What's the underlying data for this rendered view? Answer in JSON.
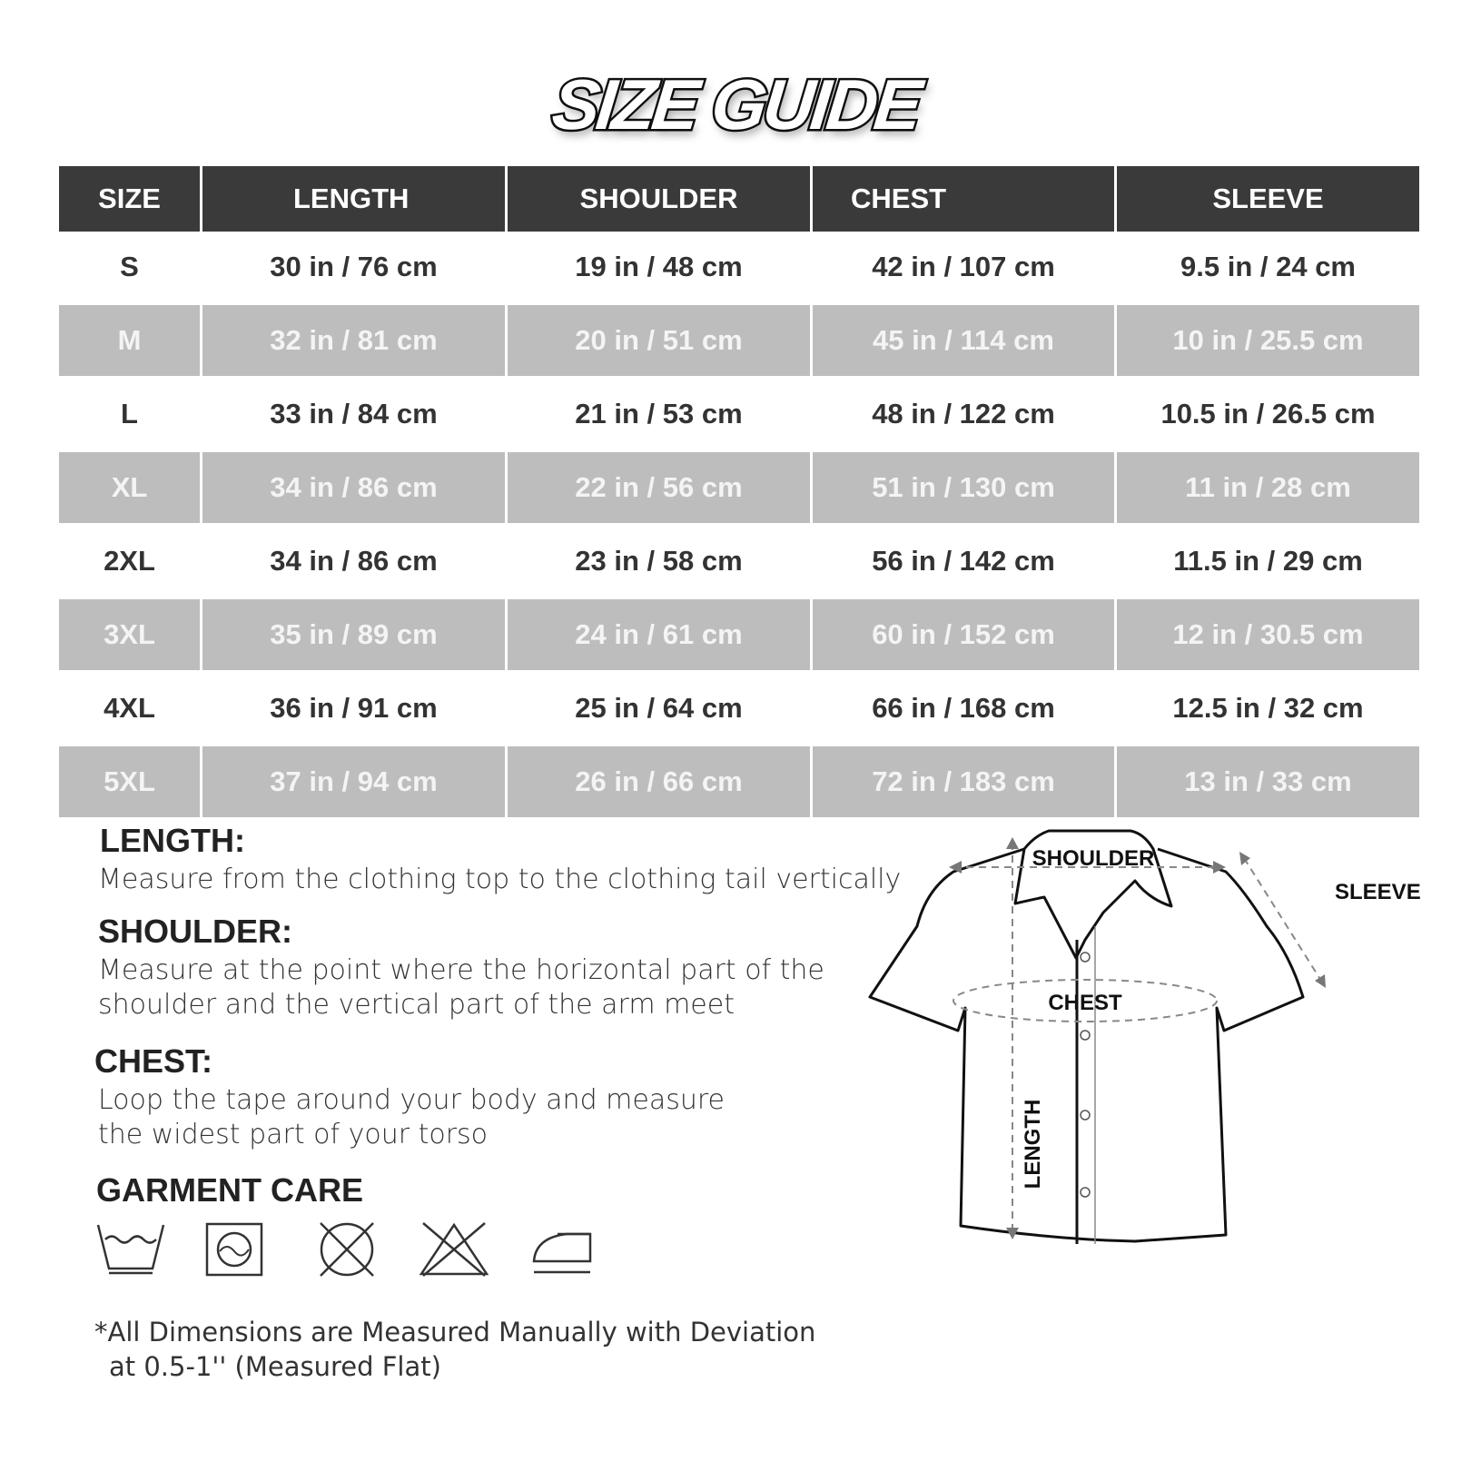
{
  "title": "SIZE GUIDE",
  "table": {
    "headers": [
      "SIZE",
      "LENGTH",
      "SHOULDER",
      "CHEST",
      "SLEEVE"
    ],
    "rows": [
      [
        "S",
        "30 in / 76 cm",
        "19 in / 48 cm",
        "42 in / 107 cm",
        "9.5 in / 24 cm"
      ],
      [
        "M",
        "32 in / 81 cm",
        "20 in / 51 cm",
        "45 in / 114 cm",
        "10 in / 25.5 cm"
      ],
      [
        "L",
        "33 in / 84 cm",
        "21 in / 53 cm",
        "48 in / 122 cm",
        "10.5 in / 26.5 cm"
      ],
      [
        "XL",
        "34 in / 86 cm",
        "22 in / 56 cm",
        "51 in / 130 cm",
        "11 in / 28 cm"
      ],
      [
        "2XL",
        "34 in / 86 cm",
        "23 in / 58 cm",
        "56 in / 142 cm",
        "11.5 in / 29 cm"
      ],
      [
        "3XL",
        "35 in / 89 cm",
        "24 in / 61 cm",
        "60 in / 152 cm",
        "12 in / 30.5 cm"
      ],
      [
        "4XL",
        "36 in / 91 cm",
        "25 in / 64 cm",
        "66 in / 168 cm",
        "12.5 in / 32 cm"
      ],
      [
        "5XL",
        "37 in / 94 cm",
        "26 in / 66 cm",
        "72 in / 183 cm",
        "13 in / 33 cm"
      ]
    ]
  },
  "instructions": {
    "length": {
      "heading": "LENGTH:",
      "lines": [
        "Measure from the clothing top to the clothing tail vertically"
      ]
    },
    "shoulder": {
      "heading": "SHOULDER:",
      "lines": [
        "Measure at the point where the horizontal part of the",
        "shoulder and the vertical part of the arm meet"
      ]
    },
    "chest": {
      "heading": "CHEST:",
      "lines": [
        "Loop the tape around your body and measure",
        "the widest part of your torso"
      ]
    }
  },
  "care": {
    "heading": "GARMENT CARE",
    "icons": [
      "hand-wash-icon",
      "tumble-dry-icon",
      "do-not-dry-clean-icon",
      "do-not-bleach-icon",
      "iron-icon"
    ]
  },
  "note": {
    "line1": "*All Dimensions are Measured Manually with Deviation",
    "line2": "at 0.5-1''  (Measured Flat)"
  },
  "diagram": {
    "shoulder": "SHOULDER",
    "sleeve": "SLEEVE",
    "chest": "CHEST",
    "length": "LENGTH"
  }
}
